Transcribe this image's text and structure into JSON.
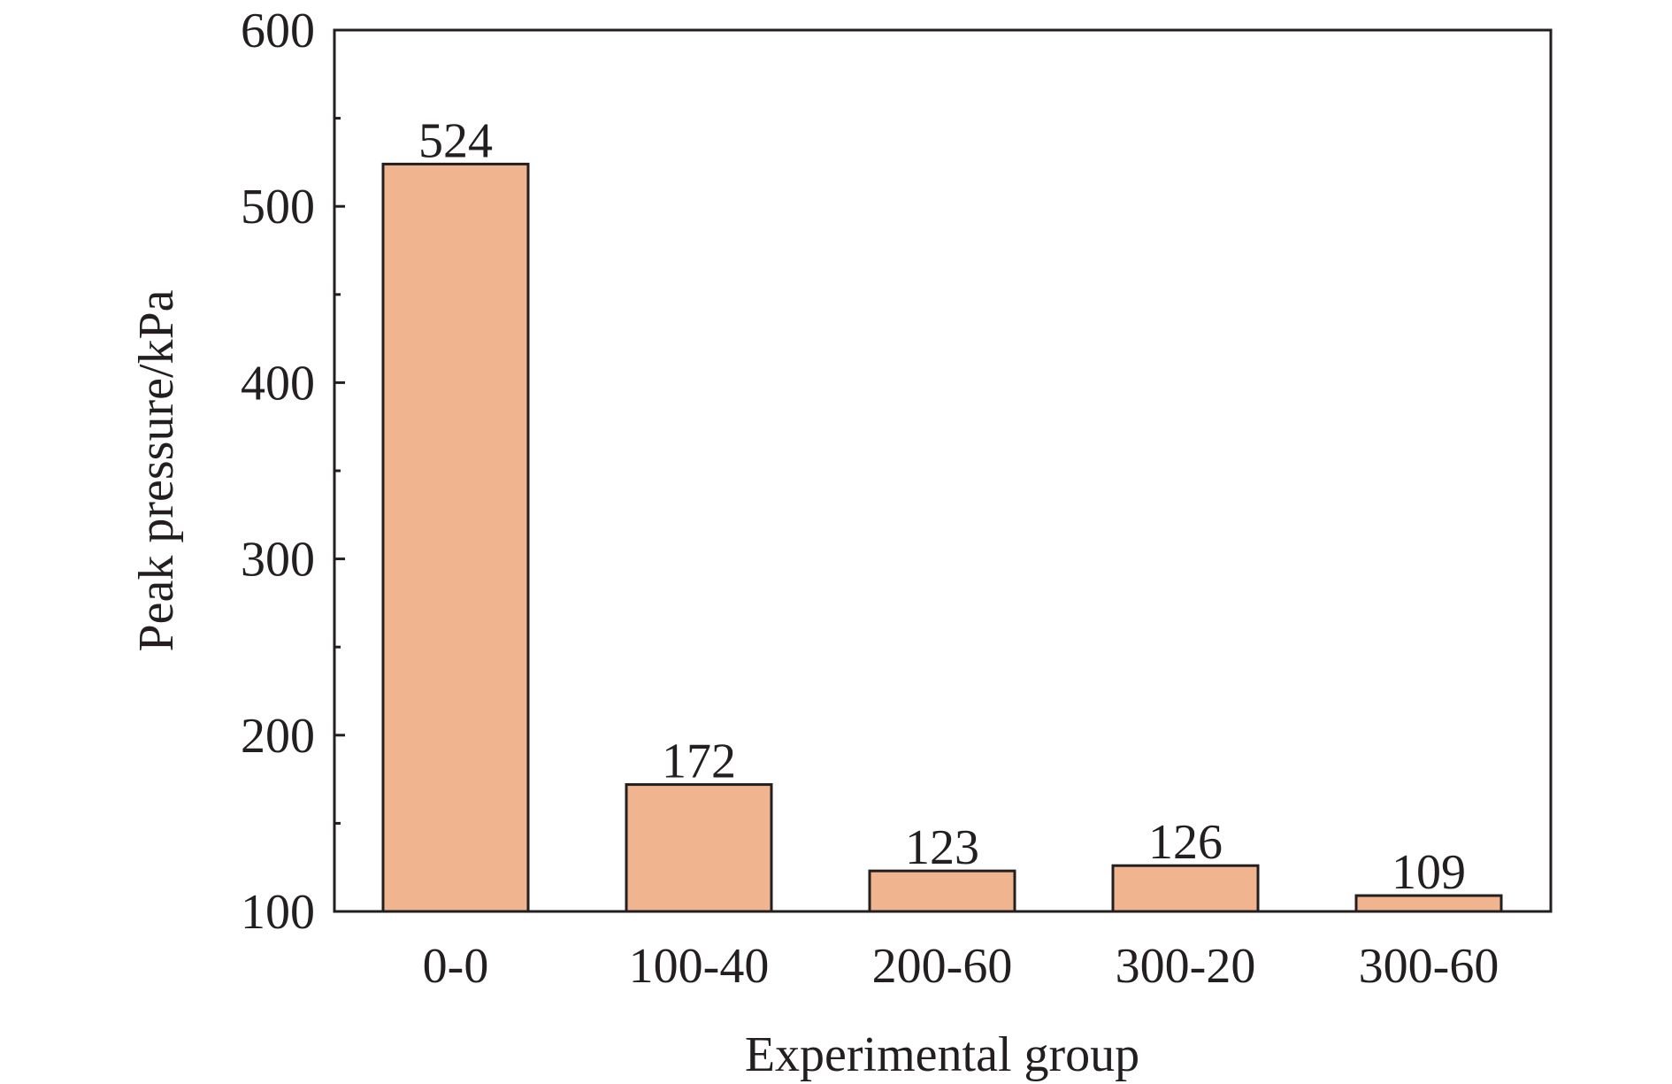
{
  "chart_data": {
    "type": "bar",
    "title": "",
    "xlabel": "Experimental group",
    "ylabel": "Peak pressure/kPa",
    "categories": [
      "0-0",
      "100-40",
      "200-60",
      "300-20",
      "300-60"
    ],
    "values": [
      524,
      172,
      123,
      126,
      109
    ],
    "data_labels": [
      "524",
      "172",
      "123",
      "126",
      "109"
    ],
    "ylim": [
      100,
      600
    ],
    "yticks": [
      100,
      200,
      300,
      400,
      500,
      600
    ],
    "ytick_labels": [
      "100",
      "200",
      "300",
      "400",
      "500",
      "600"
    ],
    "y_minor_step": 50,
    "grid": false,
    "legend": "none",
    "colors": {
      "bar_fill": "#f0b48f",
      "bar_stroke": "#231f20",
      "axis": "#231f20",
      "text": "#231f20"
    }
  }
}
